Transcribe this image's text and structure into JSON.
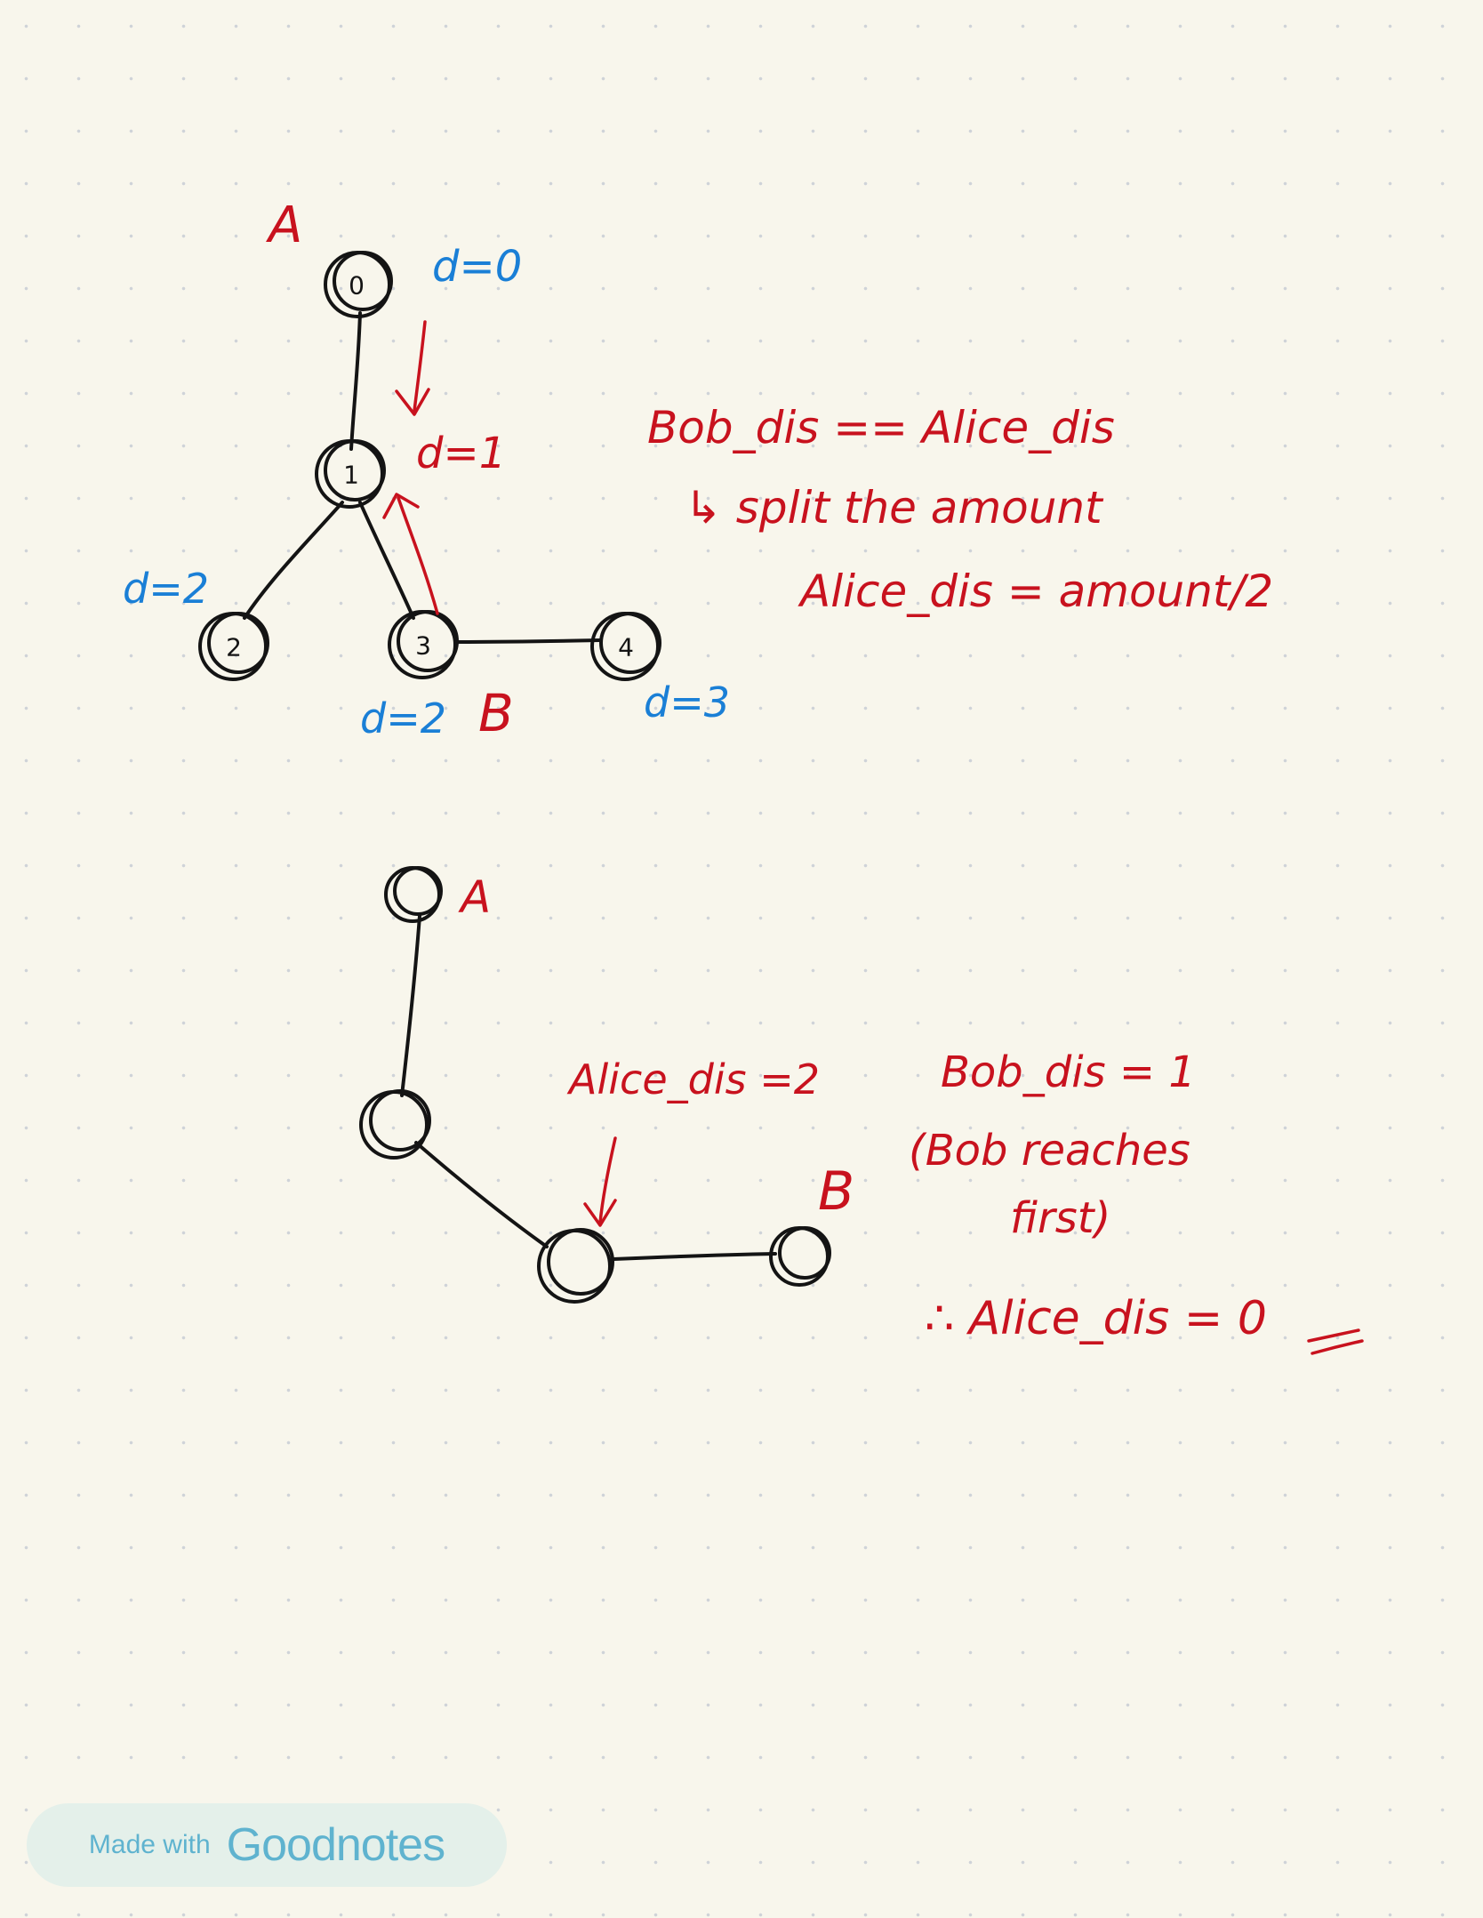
{
  "diagram1": {
    "label_alice": "A",
    "label_bob": "B",
    "nodes": [
      "0",
      "1",
      "2",
      "3",
      "4"
    ],
    "distances": {
      "node0": "d=0",
      "node1": "d=1",
      "node2": "d=2",
      "node3": "d=2",
      "node4": "d=3"
    },
    "notes": {
      "line1": "Bob_dis == Alice_dis",
      "line2": "↳ split the amount",
      "line3": "Alice_dis = amount/2"
    }
  },
  "diagram2": {
    "label_alice": "A",
    "label_bob": "B",
    "notes": {
      "alice_dis": "Alice_dis =2",
      "bob_dis": "Bob_dis = 1",
      "reason_line1": "(Bob reaches",
      "reason_line2": "first)",
      "conclusion": "∴ Alice_dis = 0"
    }
  },
  "badge": {
    "prefix": "Made with",
    "brand": "Goodnotes"
  },
  "colors": {
    "ink": "#141414",
    "red": "#c8121e",
    "blue": "#1a7fd6",
    "paper": "#f8f6ec",
    "badge_text": "#5fb3cf"
  }
}
